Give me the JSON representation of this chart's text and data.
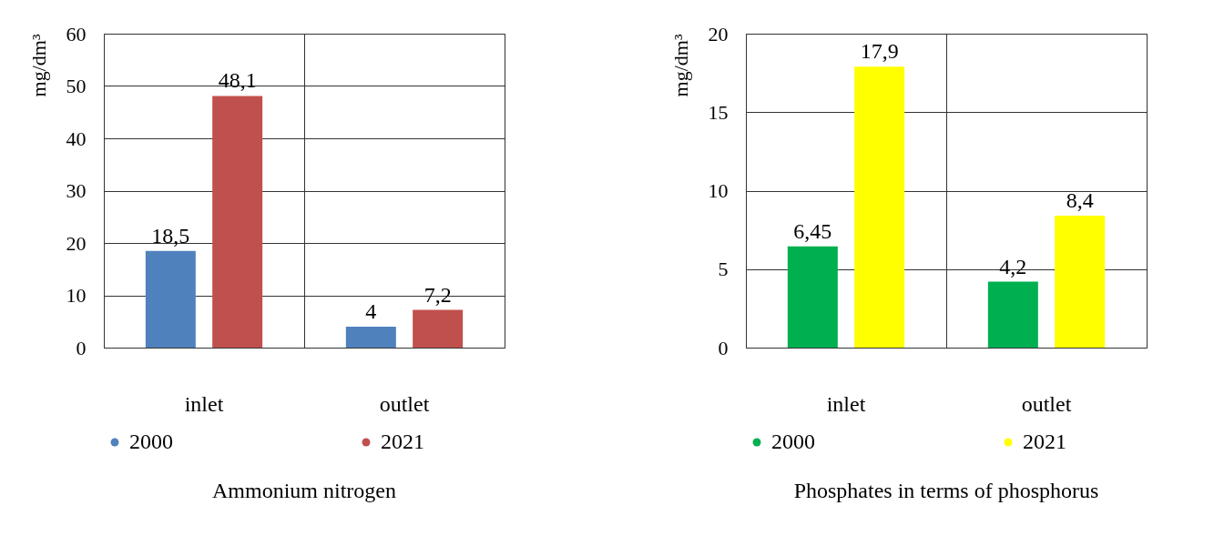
{
  "chart_data": [
    {
      "type": "bar",
      "title": "Ammonium nitrogen",
      "ylabel": "mg/dm³",
      "categories": [
        "inlet",
        "outlet"
      ],
      "series": [
        {
          "name": "2000",
          "color": "#4f81bd",
          "values": [
            18.5,
            4
          ],
          "value_labels": [
            "18,5",
            "4"
          ]
        },
        {
          "name": "2021",
          "color": "#c0504d",
          "values": [
            48.1,
            7.2
          ],
          "value_labels": [
            "48,1",
            "7,2"
          ]
        }
      ],
      "ylim": [
        0,
        60
      ],
      "yticks": [
        0,
        10,
        20,
        30,
        40,
        50,
        60
      ],
      "grid": true,
      "legend": "bottom"
    },
    {
      "type": "bar",
      "title": "Phosphates in terms of phosphorus",
      "ylabel": "mg/dm³",
      "categories": [
        "inlet",
        "outlet"
      ],
      "series": [
        {
          "name": "2000",
          "color": "#00b050",
          "values": [
            6.45,
            4.2
          ],
          "value_labels": [
            "6,45",
            "4,2"
          ]
        },
        {
          "name": "2021",
          "color": "#ffff00",
          "values": [
            17.9,
            8.4
          ],
          "value_labels": [
            "17,9",
            "8,4"
          ]
        }
      ],
      "ylim": [
        0,
        20
      ],
      "yticks": [
        0,
        5,
        10,
        15,
        20
      ],
      "grid": true,
      "legend": "bottom"
    }
  ]
}
